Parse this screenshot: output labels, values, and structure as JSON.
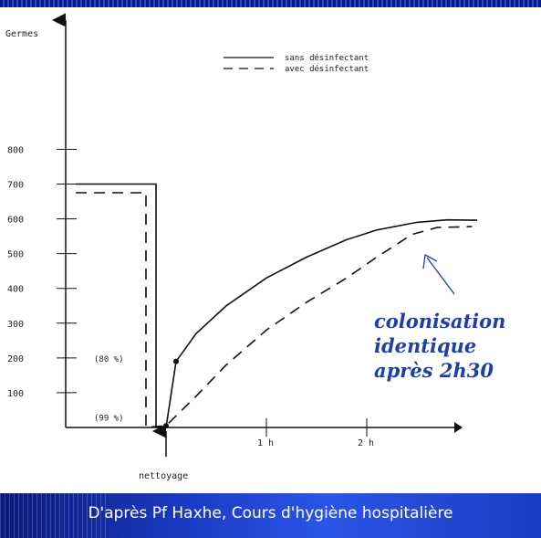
{
  "chart_data": {
    "type": "line",
    "ylabel": "Germes",
    "yticks": [
      100,
      200,
      300,
      400,
      500,
      600,
      700,
      800
    ],
    "xticks": [
      {
        "x": 1,
        "label": "1 h"
      },
      {
        "x": 2,
        "label": "2 h"
      }
    ],
    "x_event_label": "nettoyage",
    "legend": {
      "placement": "top-right",
      "entries": [
        "sans désinfectant",
        "avec désinfectant"
      ]
    },
    "series": [
      {
        "name": "sans désinfectant",
        "style": "solid",
        "points": [
          [
            -0.9,
            700
          ],
          [
            -0.1,
            700
          ],
          [
            -0.1,
            0
          ],
          [
            0.0,
            0
          ],
          [
            0.1,
            190
          ],
          [
            0.3,
            270
          ],
          [
            0.6,
            350
          ],
          [
            1.0,
            430
          ],
          [
            1.4,
            490
          ],
          [
            1.8,
            540
          ],
          [
            2.1,
            568
          ],
          [
            2.5,
            590
          ],
          [
            2.8,
            597
          ],
          [
            3.1,
            596
          ]
        ]
      },
      {
        "name": "avec désinfectant",
        "style": "dashed",
        "points": [
          [
            -0.9,
            675
          ],
          [
            -0.2,
            675
          ],
          [
            -0.2,
            0
          ],
          [
            0.0,
            5
          ],
          [
            0.3,
            90
          ],
          [
            0.6,
            180
          ],
          [
            1.0,
            280
          ],
          [
            1.4,
            360
          ],
          [
            1.8,
            430
          ],
          [
            2.1,
            490
          ],
          [
            2.45,
            555
          ],
          [
            2.7,
            575
          ],
          [
            3.05,
            578
          ]
        ]
      }
    ],
    "annotations": [
      {
        "label": "(80 %)",
        "y": 200
      },
      {
        "label": "(99 %)",
        "y": 30
      }
    ],
    "callout": [
      "colonisation",
      "identique",
      "après 2h30"
    ]
  },
  "footer": "D'après Pf Haxhe,  Cours d'hygiène hospitalière",
  "colors": {
    "background": "#0d1f8a",
    "callout": "#1f3fa8",
    "panel": "#ffffff"
  }
}
